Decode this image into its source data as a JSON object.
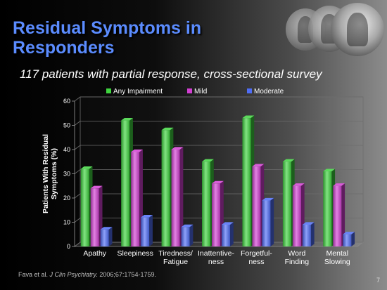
{
  "slide": {
    "title_line1": "Residual Symptoms in",
    "title_line2": "Responders",
    "subtitle": "117 patients with partial response, cross-sectional survey",
    "citation_pre": "Fava et al. ",
    "citation_journal": "J Clin Psychiatry.",
    "citation_post": " 2006;67:1754-1759.",
    "page_number": "7"
  },
  "colors": {
    "any": "#3fd43f",
    "mild": "#d23fd2",
    "moderate": "#4f6df5"
  },
  "chart_data": {
    "type": "bar",
    "ylabel_line1": "Patients With Residual",
    "ylabel_line2": "Symptoms (%)",
    "ylim": [
      0,
      60
    ],
    "yticks": [
      "0",
      "10",
      "20",
      "30",
      "40",
      "50",
      "60"
    ],
    "grid": true,
    "legend_position": "top",
    "categories": [
      [
        "Apathy"
      ],
      [
        "Sleepiness"
      ],
      [
        "Tiredness/",
        "Fatigue"
      ],
      [
        "Inattentive-",
        "ness"
      ],
      [
        "Forgetful-",
        "ness"
      ],
      [
        "Word",
        "Finding"
      ],
      [
        "Mental",
        "Slowing"
      ]
    ],
    "series": [
      {
        "name": "Any Impairment",
        "color_key": "any",
        "values": [
          32,
          52,
          48,
          35,
          53,
          35,
          31
        ]
      },
      {
        "name": "Mild",
        "color_key": "mild",
        "values": [
          24,
          39,
          40,
          26,
          33,
          25,
          25
        ]
      },
      {
        "name": "Moderate",
        "color_key": "moderate",
        "values": [
          7,
          12,
          8,
          9,
          19,
          9,
          5
        ]
      }
    ]
  }
}
